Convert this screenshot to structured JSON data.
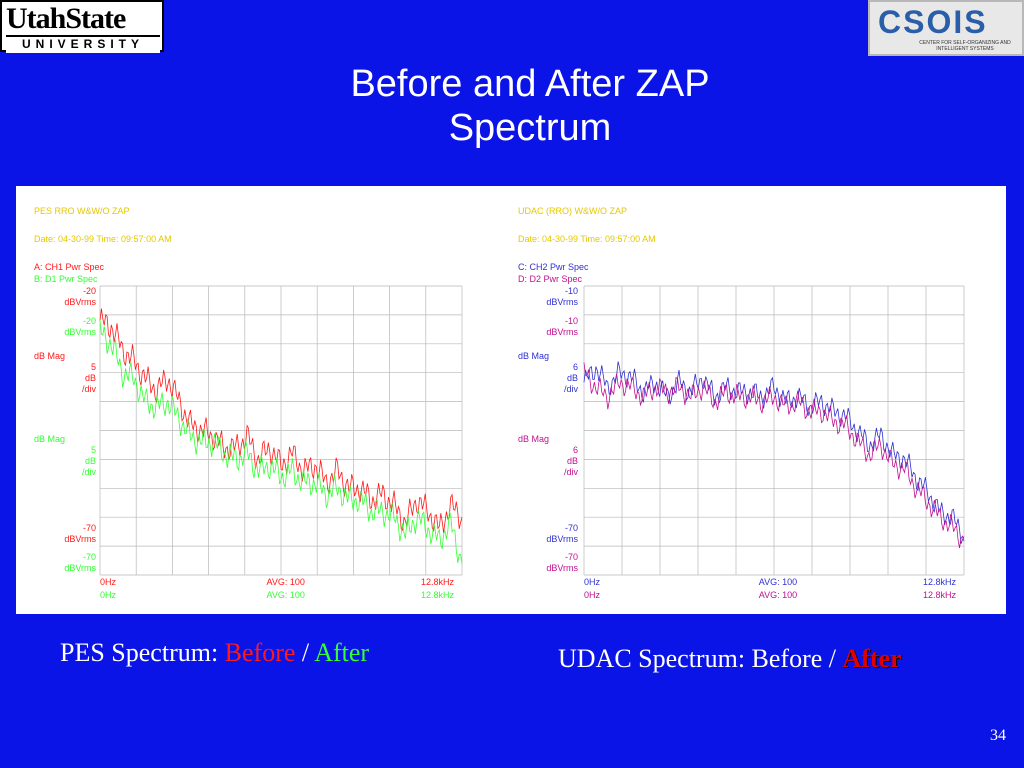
{
  "logos": {
    "usu_line1": "UtahState",
    "usu_line2": "UNIVERSITY",
    "csois_word": "CSOIS",
    "csois_sub": "CENTER FOR SELF-ORGANIZING AND INTELLIGENT SYSTEMS"
  },
  "title": {
    "line1": "Before and After ZAP",
    "line2": "Spectrum"
  },
  "colors": {
    "background": "#0b14e6",
    "before": "#ff1a1a",
    "after": "#33ff33",
    "udac_c": "#3030d0",
    "udac_d": "#c01090"
  },
  "captions": {
    "left": {
      "prefix": "PES Spectrum: ",
      "before": "Before",
      "slash": " / ",
      "after": "After"
    },
    "right": {
      "prefix": "UDAC Spectrum: Before / ",
      "after": "After"
    }
  },
  "page_number": "34",
  "chart_data": [
    {
      "type": "line",
      "header": "PES RRO W&W/O ZAP",
      "date": "Date: 04-30-99  Time: 09:57:00 AM",
      "trace_a": "A: CH1 Pwr Spec",
      "trace_b": "B: D1 Pwr Spec",
      "top_a": [
        "-20",
        "dBVrms"
      ],
      "top_b": [
        "-20",
        "dBVrms"
      ],
      "scale_a": [
        "dB Mag",
        "5",
        "dB",
        "/div"
      ],
      "scale_b": [
        "dB Mag",
        "5",
        "dB",
        "/div"
      ],
      "bottom_a": [
        "-70",
        "dBVrms"
      ],
      "bottom_b": [
        "-70",
        "dBVrms"
      ],
      "x_start": "0Hz",
      "x_avg": "AVG: 100",
      "x_end": "12.8kHz",
      "xlim_hz": [
        0,
        12800
      ],
      "ylim_db": [
        -70,
        -20
      ],
      "grid": true,
      "series": [
        {
          "name": "A: CH1 Pwr Spec",
          "color": "#ff1a1a",
          "x_hz": [
            0,
            400,
            800,
            1200,
            1600,
            2000,
            2400,
            2800,
            3200,
            3600,
            4000,
            4400,
            4800,
            5200,
            5600,
            6000,
            6400,
            6800,
            7200,
            7600,
            8000,
            8400,
            8800,
            9200,
            9600,
            10000,
            10400,
            10800,
            11200,
            11600,
            12000,
            12400,
            12800
          ],
          "values": [
            -26,
            -27,
            -31,
            -33,
            -36,
            -38,
            -36,
            -40,
            -44,
            -45,
            -46,
            -48,
            -48,
            -46,
            -50,
            -48,
            -51,
            -49,
            -52,
            -51,
            -54,
            -52,
            -55,
            -55,
            -57,
            -56,
            -58,
            -61,
            -57,
            -59,
            -62,
            -58,
            -60
          ]
        },
        {
          "name": "B: D1 Pwr Spec",
          "color": "#33ff33",
          "x_hz": [
            0,
            400,
            800,
            1200,
            1600,
            2000,
            2400,
            2800,
            3200,
            3600,
            4000,
            4400,
            4800,
            5200,
            5600,
            6000,
            6400,
            6800,
            7200,
            7600,
            8000,
            8400,
            8800,
            9200,
            9600,
            10000,
            10400,
            10800,
            11200,
            11600,
            12000,
            12400,
            12800
          ],
          "values": [
            -28,
            -30,
            -35,
            -36,
            -40,
            -41,
            -40,
            -43,
            -46,
            -47,
            -47,
            -49,
            -50,
            -49,
            -52,
            -51,
            -53,
            -52,
            -54,
            -54,
            -56,
            -55,
            -57,
            -57,
            -59,
            -59,
            -60,
            -63,
            -60,
            -62,
            -64,
            -61,
            -68
          ]
        }
      ]
    },
    {
      "type": "line",
      "header": "UDAC (RRO) W&W/O ZAP",
      "date": "Date: 04-30-99  Time: 09:57:00 AM",
      "trace_a": "C: CH2 Pwr Spec",
      "trace_b": "D: D2 Pwr Spec",
      "top_a": [
        "-10",
        "dBVrms"
      ],
      "top_b": [
        "-10",
        "dBVrms"
      ],
      "scale_a": [
        "dB Mag",
        "6",
        "dB",
        "/div"
      ],
      "scale_b": [
        "dB Mag",
        "6",
        "dB",
        "/div"
      ],
      "bottom_a": [
        "-70",
        "dBVrms"
      ],
      "bottom_b": [
        "-70",
        "dBVrms"
      ],
      "x_start": "0Hz",
      "x_avg": "AVG: 100",
      "x_end": "12.8kHz",
      "xlim_hz": [
        0,
        12800
      ],
      "ylim_db": [
        -70,
        -10
      ],
      "grid": true,
      "series": [
        {
          "name": "C: CH2 Pwr Spec",
          "color": "#3030d0",
          "x_hz": [
            0,
            400,
            800,
            1200,
            1600,
            2000,
            2400,
            2800,
            3200,
            3600,
            4000,
            4400,
            4800,
            5200,
            5600,
            6000,
            6400,
            6800,
            7200,
            7600,
            8000,
            8400,
            8800,
            9200,
            9600,
            10000,
            10400,
            10800,
            11200,
            11600,
            12000,
            12400,
            12800
          ],
          "values": [
            -30,
            -27,
            -31,
            -28,
            -29,
            -32,
            -30,
            -33,
            -30,
            -32,
            -29,
            -33,
            -31,
            -32,
            -32,
            -33,
            -31,
            -34,
            -33,
            -35,
            -34,
            -36,
            -37,
            -40,
            -43,
            -41,
            -45,
            -46,
            -50,
            -53,
            -57,
            -58,
            -62
          ]
        },
        {
          "name": "D: D2 Pwr Spec",
          "color": "#c01090",
          "x_hz": [
            0,
            400,
            800,
            1200,
            1600,
            2000,
            2400,
            2800,
            3200,
            3600,
            4000,
            4400,
            4800,
            5200,
            5600,
            6000,
            6400,
            6800,
            7200,
            7600,
            8000,
            8400,
            8800,
            9200,
            9600,
            10000,
            10400,
            10800,
            11200,
            11600,
            12000,
            12400,
            12800
          ],
          "values": [
            -28,
            -31,
            -33,
            -30,
            -31,
            -33,
            -31,
            -32,
            -31,
            -33,
            -31,
            -34,
            -32,
            -33,
            -33,
            -34,
            -33,
            -35,
            -34,
            -36,
            -36,
            -38,
            -39,
            -42,
            -45,
            -43,
            -47,
            -48,
            -52,
            -55,
            -58,
            -60,
            -63
          ]
        }
      ]
    }
  ]
}
